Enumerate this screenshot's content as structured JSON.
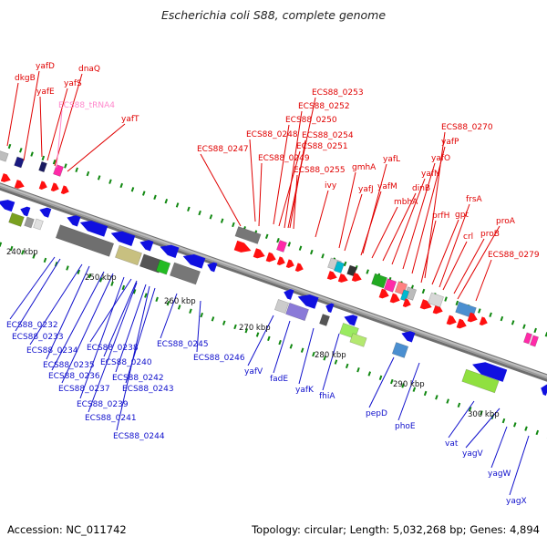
{
  "title": "Escherichia coli S88, complete genome",
  "footer": {
    "accession": "Accession: NC_011742",
    "topology": "Topology: circular; Length: 5,032,268 bp; Genes: 4,894"
  },
  "colors": {
    "forward_label": "#e00000",
    "reverse_label": "#1010cc",
    "trna_label": "#ff88cc",
    "backbone": "#8c8c8c",
    "tick": "#118811"
  },
  "scale_labels": [
    "240 kbp",
    "250 kbp",
    "260 kbp",
    "270 kbp",
    "280 kbp",
    "290 kbp",
    "300 kbp"
  ],
  "forward_genes": [
    "dkgB",
    "yafD",
    "yafE",
    "yafS",
    "dnaQ",
    "ECS88_tRNA4",
    "yafT",
    "ECS88_0247",
    "ECS88_0248",
    "ECS88_0249",
    "ECS88_0250",
    "ECS88_0251",
    "ECS88_0252",
    "ECS88_0253",
    "ECS88_0254",
    "ECS88_0255",
    "ivy",
    "gmhA",
    "yafJ",
    "yafL",
    "yafM",
    "mbhA",
    "dinB",
    "yafN",
    "yafO",
    "yafP",
    "prfH",
    "ECS88_0270",
    "gpt",
    "frsA",
    "crl",
    "proB",
    "proA",
    "ECS88_0279"
  ],
  "reverse_genes": [
    "ECS88_0232",
    "ECS88_0233",
    "ECS88_0234",
    "ECS88_0235",
    "ECS88_0236",
    "ECS88_0237",
    "ECS88_0238",
    "ECS88_0239",
    "ECS88_0240",
    "ECS88_0241",
    "ECS88_0242",
    "ECS88_0243",
    "ECS88_0244",
    "ECS88_0245",
    "ECS88_0246",
    "yafV",
    "fadE",
    "yafK",
    "fhiA",
    "pepD",
    "phoE",
    "vat",
    "yagV",
    "yagW",
    "yagX"
  ]
}
